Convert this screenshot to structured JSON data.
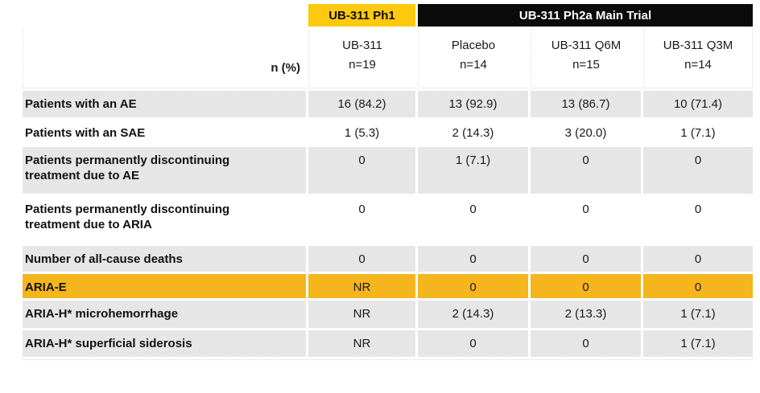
{
  "table": {
    "top_header": {
      "ph1_label": "UB-311 Ph1",
      "ph2a_label": "UB-311 Ph2a Main Trial"
    },
    "unit_label": "n (%)",
    "columns": [
      {
        "line1": "UB-311",
        "line2": "n=19"
      },
      {
        "line1": "Placebo",
        "line2": "n=14"
      },
      {
        "line1": "UB-311 Q6M",
        "line2": "n=15"
      },
      {
        "line1": "UB-311 Q3M",
        "line2": "n=14"
      }
    ],
    "rows": [
      {
        "label": "Patients with an AE",
        "values": [
          "16 (84.2)",
          "13 (92.9)",
          "13 (86.7)",
          "10 (71.4)"
        ]
      },
      {
        "label": "Patients with an SAE",
        "values": [
          "1 (5.3)",
          "2 (14.3)",
          "3 (20.0)",
          "1 (7.1)"
        ]
      },
      {
        "label": "Patients permanently discontinuing treatment due to AE",
        "values": [
          "0",
          "1 (7.1)",
          "0",
          "0"
        ]
      },
      {
        "label": "Patients permanently discontinuing treatment due to ARIA",
        "values": [
          "0",
          "0",
          "0",
          "0"
        ]
      },
      {
        "label": "Number of all-cause deaths",
        "values": [
          "0",
          "0",
          "0",
          "0"
        ]
      },
      {
        "label": "ARIA-E",
        "values": [
          "NR",
          "0",
          "0",
          "0"
        ]
      },
      {
        "label": "ARIA-H* microhemorrhage",
        "values": [
          "NR",
          "2 (14.3)",
          "2 (13.3)",
          "1 (7.1)"
        ]
      },
      {
        "label": "ARIA-H* superficial siderosis",
        "values": [
          "NR",
          "0",
          "0",
          "1 (7.1)"
        ]
      }
    ],
    "colors": {
      "header_yellow": "#FFC90E",
      "header_black": "#0B0B0B",
      "row_shaded": "#E7E6E6",
      "row_highlight": "#F5B51D"
    }
  }
}
